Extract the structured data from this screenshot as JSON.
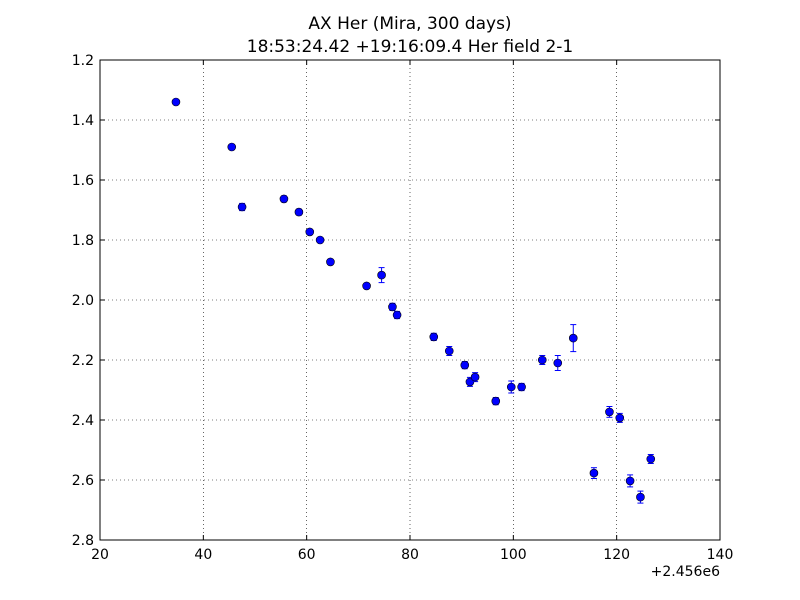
{
  "chart_data": {
    "type": "scatter",
    "title": "AX Her (Mira, 300 days)",
    "subtitle": "18:53:24.42 +19:16:09.4 Her field 2-1",
    "xlabel": "",
    "ylabel": "",
    "x_offset_label": "+2.456e6",
    "xlim": [
      20,
      140
    ],
    "ylim": [
      2.8,
      1.2
    ],
    "y_inverted": true,
    "x_ticks": [
      20,
      40,
      60,
      80,
      100,
      120,
      140
    ],
    "y_ticks": [
      1.2,
      1.4,
      1.6,
      1.8,
      2.0,
      2.2,
      2.4,
      2.6,
      2.8
    ],
    "x_tick_labels": [
      "20",
      "40",
      "60",
      "80",
      "100",
      "120",
      "140"
    ],
    "y_tick_labels": [
      "1.2",
      "1.4",
      "1.6",
      "1.8",
      "2.0",
      "2.2",
      "2.4",
      "2.6",
      "2.8"
    ],
    "grid": true,
    "marker_color": "#0000ff",
    "points": [
      {
        "x": 34.7,
        "y": 1.34,
        "err": 0.008
      },
      {
        "x": 45.5,
        "y": 1.49,
        "err": 0.008
      },
      {
        "x": 47.5,
        "y": 1.69,
        "err": 0.012
      },
      {
        "x": 55.6,
        "y": 1.663,
        "err": 0.01
      },
      {
        "x": 58.5,
        "y": 1.707,
        "err": 0.01
      },
      {
        "x": 60.6,
        "y": 1.773,
        "err": 0.008
      },
      {
        "x": 62.6,
        "y": 1.8,
        "err": 0.008
      },
      {
        "x": 64.6,
        "y": 1.873,
        "err": 0.008
      },
      {
        "x": 71.6,
        "y": 1.953,
        "err": 0.008
      },
      {
        "x": 74.5,
        "y": 1.917,
        "err": 0.025
      },
      {
        "x": 76.6,
        "y": 2.023,
        "err": 0.012
      },
      {
        "x": 77.5,
        "y": 2.05,
        "err": 0.012
      },
      {
        "x": 84.6,
        "y": 2.123,
        "err": 0.012
      },
      {
        "x": 87.6,
        "y": 2.17,
        "err": 0.015
      },
      {
        "x": 90.6,
        "y": 2.217,
        "err": 0.012
      },
      {
        "x": 91.6,
        "y": 2.273,
        "err": 0.015
      },
      {
        "x": 92.6,
        "y": 2.257,
        "err": 0.015
      },
      {
        "x": 96.6,
        "y": 2.337,
        "err": 0.012
      },
      {
        "x": 99.6,
        "y": 2.29,
        "err": 0.02
      },
      {
        "x": 101.6,
        "y": 2.29,
        "err": 0.012
      },
      {
        "x": 105.6,
        "y": 2.2,
        "err": 0.015
      },
      {
        "x": 108.6,
        "y": 2.21,
        "err": 0.025
      },
      {
        "x": 111.6,
        "y": 2.127,
        "err": 0.045
      },
      {
        "x": 115.6,
        "y": 2.577,
        "err": 0.018
      },
      {
        "x": 118.6,
        "y": 2.373,
        "err": 0.018
      },
      {
        "x": 120.6,
        "y": 2.393,
        "err": 0.015
      },
      {
        "x": 122.6,
        "y": 2.603,
        "err": 0.02
      },
      {
        "x": 124.6,
        "y": 2.657,
        "err": 0.02
      },
      {
        "x": 126.6,
        "y": 2.53,
        "err": 0.015
      }
    ]
  }
}
